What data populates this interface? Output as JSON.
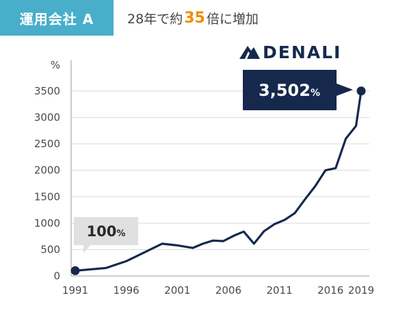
{
  "header": {
    "badge": "運用会社 A",
    "headline_prefix": "28年で約",
    "headline_number": "35",
    "headline_suffix": "倍に増加"
  },
  "logo": {
    "text": "DENALI",
    "icon": "mountain-icon"
  },
  "callouts": {
    "start": {
      "value": "100",
      "unit": "%"
    },
    "end": {
      "value": "3,502",
      "unit": "%"
    }
  },
  "colors": {
    "badge": "#49aeca",
    "accent": "#f08c00",
    "line": "#16294d",
    "callout_start_bg": "#e0e0e0",
    "callout_end_bg": "#16294d"
  },
  "chart_data": {
    "type": "line",
    "title": "",
    "xlabel": "",
    "ylabel": "%",
    "ylim": [
      0,
      3500
    ],
    "xlim": [
      1991,
      2019
    ],
    "yticks": [
      0,
      500,
      1000,
      1500,
      2000,
      2500,
      3000,
      3500
    ],
    "xticks": [
      1991,
      1996,
      2001,
      2006,
      2011,
      2016,
      2019
    ],
    "grid": true,
    "legend": "none",
    "x": [
      1991,
      1994,
      1996,
      1997.5,
      1999.5,
      2001,
      2002.5,
      2003.5,
      2004.5,
      2005.5,
      2006.5,
      2007.5,
      2008.5,
      2009.5,
      2010.5,
      2011.5,
      2012.5,
      2013.5,
      2014.5,
      2015.5,
      2016.5,
      2017.5,
      2018.5,
      2019
    ],
    "y": [
      100,
      150,
      280,
      420,
      610,
      580,
      530,
      610,
      670,
      660,
      760,
      840,
      610,
      850,
      980,
      1060,
      1190,
      1450,
      1700,
      2000,
      2040,
      2600,
      2840,
      3502
    ]
  }
}
